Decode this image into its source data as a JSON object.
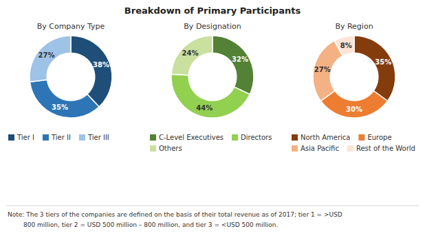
{
  "title": "Breakdown of Primary Participants",
  "annotations": [
    "Note: The 3 tiers of the companies are defined on the basis of their total revenue as of 2017; tier 1 = >USD",
    "800 million, tier 2 = USD 500 million – 800 million, and tier 3 = <USD 500 million."
  ],
  "chart_data": [
    {
      "type": "pie",
      "title": "By Company Type",
      "categories": [
        "Tier I",
        "Tier II",
        "Tier III"
      ],
      "values": [
        38,
        35,
        27
      ],
      "value_labels": [
        "38%",
        "35%",
        "27%"
      ],
      "colors": [
        "#1f4e79",
        "#2e75b6",
        "#9dc3e6"
      ],
      "data_labels": true,
      "legend": "bottom"
    },
    {
      "type": "pie",
      "title": "By Designation",
      "categories": [
        "C-Level Executives",
        "Directors",
        "Others"
      ],
      "values": [
        32,
        44,
        24
      ],
      "value_labels": [
        "32%",
        "44%",
        "24%"
      ],
      "colors": [
        "#538135",
        "#92d050",
        "#c9e09f"
      ],
      "data_labels": true,
      "legend": "bottom"
    },
    {
      "type": "pie",
      "title": "By Region",
      "categories": [
        "North America",
        "Europe",
        "Asia Pacific",
        "Rest of the World"
      ],
      "values": [
        35,
        30,
        27,
        8
      ],
      "value_labels": [
        "35%",
        "30%",
        "27%",
        "8%"
      ],
      "colors": [
        "#843c0c",
        "#ed7d31",
        "#f4b183",
        "#fce4d6"
      ],
      "data_labels": true,
      "legend": "bottom"
    }
  ]
}
